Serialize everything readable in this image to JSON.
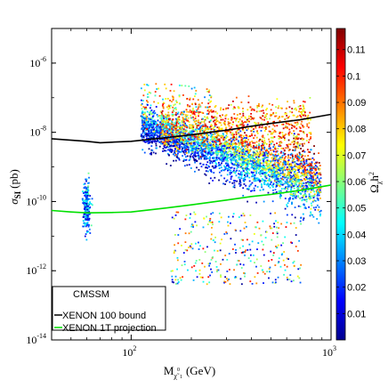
{
  "chart_data": {
    "type": "scatter",
    "xlabel": "M",
    "xlabel_sub": "χ̃",
    "xlabel_subsub": "0",
    "xlabel_subsub2": "1",
    "xlabel_unit": "(GeV)",
    "ylabel": "σ",
    "ylabel_sub": "SI",
    "ylabel_unit": "(pb)",
    "x_scale": "log",
    "y_scale": "log",
    "xlim": [
      40,
      1000
    ],
    "ylim": [
      1e-14,
      1e-05
    ],
    "x_ticks": [
      {
        "base": "10",
        "exp": "2",
        "value": 100
      },
      {
        "base": "10",
        "exp": "3",
        "value": 1000
      }
    ],
    "y_ticks": [
      {
        "base": "10",
        "exp": "-6",
        "value": 1e-06
      },
      {
        "base": "10",
        "exp": "-8",
        "value": 1e-08
      },
      {
        "base": "10",
        "exp": "-10",
        "value": 1e-10
      },
      {
        "base": "10",
        "exp": "-12",
        "value": 1e-12
      },
      {
        "base": "10",
        "exp": "-14",
        "value": 1e-14
      }
    ],
    "colorbar": {
      "label": "Ω",
      "label_sub": "χ̃",
      "label_sup": "h",
      "label_sup2": "2",
      "range": [
        0,
        0.118
      ],
      "ticks": [
        "0.01",
        "0.02",
        "0.03",
        "0.04",
        "0.05",
        "0.06",
        "0.07",
        "0.08",
        "0.09",
        "0.1",
        "0.11"
      ],
      "colors": [
        "#00008f",
        "#0000ff",
        "#0080ff",
        "#00ffff",
        "#80ff80",
        "#ffff00",
        "#ff8000",
        "#ff0000",
        "#800000"
      ]
    },
    "series": [
      {
        "name": "XENON 100 bound",
        "color": "#000000",
        "x": [
          40,
          60,
          70,
          100,
          150,
          200,
          300,
          400,
          500,
          700,
          1000
        ],
        "y": [
          6.5e-09,
          5.5e-09,
          5e-09,
          5.5e-09,
          7e-09,
          8.5e-09,
          1.15e-08,
          1.5e-08,
          1.8e-08,
          2.3e-08,
          3.3e-08
        ]
      },
      {
        "name": "XENON 1T projection",
        "color": "#00e000",
        "x": [
          40,
          50,
          60,
          80,
          100,
          150,
          200,
          300,
          400,
          500,
          700,
          1000
        ],
        "y": [
          5.5e-11,
          5e-11,
          4.7e-11,
          4.8e-11,
          5e-11,
          6.5e-11,
          8e-11,
          1.1e-10,
          1.4e-10,
          1.6e-10,
          2.1e-10,
          3e-10
        ]
      }
    ],
    "point_clouds": [
      {
        "region": "main band",
        "x_range": [
          110,
          900
        ],
        "y_range": [
          3e-11,
          1e-07
        ]
      },
      {
        "region": "low mass",
        "x_range": [
          58,
          66
        ],
        "y_range": [
          2e-11,
          6e-10
        ]
      },
      {
        "region": "low tail",
        "x_range": [
          150,
          800
        ],
        "y_range": [
          1e-13,
          5e-11
        ]
      }
    ],
    "legend": {
      "placement": "bottom-left",
      "title": "CMSSM",
      "entries": [
        "XENON 100 bound",
        "XENON 1T projection"
      ]
    }
  }
}
